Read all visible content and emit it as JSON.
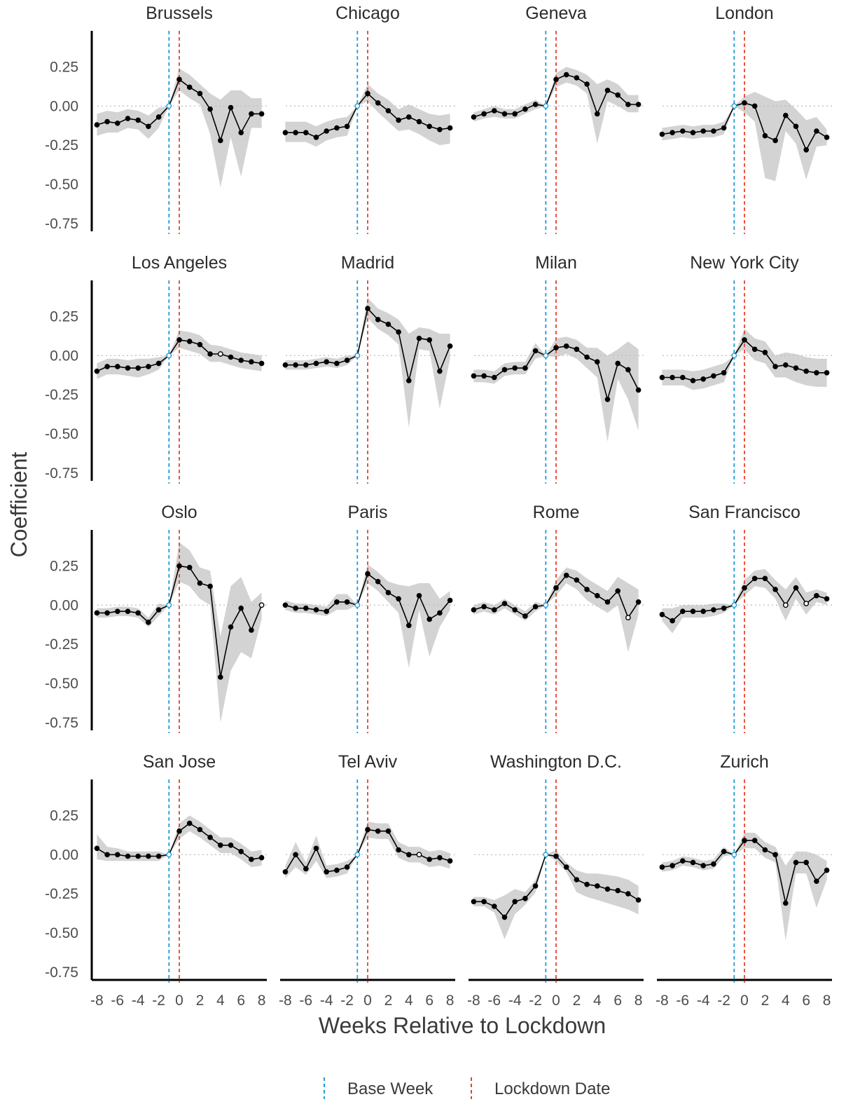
{
  "chart_data": {
    "type": "line",
    "layout": "facet-grid 4x4",
    "xlabel": "Weeks Relative to Lockdown",
    "ylabel": "Coefficient",
    "x": [
      -8,
      -7,
      -6,
      -5,
      -4,
      -3,
      -2,
      -1,
      0,
      1,
      2,
      3,
      4,
      5,
      6,
      7,
      8
    ],
    "xticks": [
      -8,
      -6,
      -4,
      -2,
      0,
      2,
      4,
      6,
      8
    ],
    "xtick_labels": [
      "-8",
      "-6",
      "-4",
      "-2",
      "0",
      "2",
      "4",
      "6",
      "8"
    ],
    "yticks": [
      -0.75,
      -0.5,
      -0.25,
      0,
      0.25
    ],
    "ytick_labels": [
      "-0.75",
      "-0.50",
      "-0.25",
      "0.00",
      "0.25"
    ],
    "ylim": [
      -0.8,
      0.48
    ],
    "reference_lines": [
      {
        "name": "Base Week",
        "x": -1,
        "color": "#1e9bd7",
        "style": "dashed"
      },
      {
        "name": "Lockdown Date",
        "x": 0,
        "color": "#e8412c",
        "style": "dashed"
      }
    ],
    "zero_line": {
      "y": 0,
      "style": "dotted",
      "color": "#bdbdbd"
    },
    "ribbon_color": "#d3d3d3",
    "line_color": "#000000",
    "legend": {
      "position": "bottom",
      "entries": [
        "Base Week",
        "Lockdown Date"
      ]
    },
    "panels": [
      {
        "name": "Brussels",
        "y": [
          -0.12,
          -0.1,
          -0.11,
          -0.08,
          -0.09,
          -0.13,
          -0.07,
          0,
          0.17,
          0.12,
          0.08,
          -0.02,
          -0.22,
          -0.01,
          -0.17,
          -0.05,
          -0.05
        ],
        "lower": [
          -0.19,
          -0.17,
          -0.17,
          -0.14,
          -0.15,
          -0.21,
          -0.14,
          0,
          0.1,
          0.05,
          0.01,
          -0.18,
          -0.52,
          -0.2,
          -0.45,
          -0.14,
          -0.14
        ],
        "upper": [
          -0.05,
          -0.03,
          -0.04,
          -0.02,
          -0.03,
          -0.06,
          -0.01,
          0,
          0.24,
          0.2,
          0.14,
          0.08,
          0.04,
          0.1,
          0.1,
          0.05,
          0.05
        ]
      },
      {
        "name": "Chicago",
        "y": [
          -0.17,
          -0.17,
          -0.17,
          -0.2,
          -0.16,
          -0.14,
          -0.13,
          0,
          0.08,
          0.02,
          -0.03,
          -0.09,
          -0.07,
          -0.1,
          -0.13,
          -0.15,
          -0.14
        ],
        "lower": [
          -0.23,
          -0.23,
          -0.23,
          -0.26,
          -0.22,
          -0.2,
          -0.19,
          0,
          0.03,
          -0.04,
          -0.1,
          -0.16,
          -0.15,
          -0.18,
          -0.22,
          -0.25,
          -0.24
        ],
        "upper": [
          -0.1,
          -0.1,
          -0.1,
          -0.13,
          -0.1,
          -0.08,
          -0.07,
          0,
          0.14,
          0.08,
          0.04,
          -0.02,
          0.01,
          -0.02,
          -0.05,
          -0.06,
          -0.05
        ]
      },
      {
        "name": "Geneva",
        "y": [
          -0.07,
          -0.05,
          -0.03,
          -0.05,
          -0.05,
          -0.02,
          0.01,
          0,
          0.17,
          0.2,
          0.18,
          0.14,
          -0.05,
          0.1,
          0.07,
          0.01,
          0.01
        ],
        "lower": [
          -0.1,
          -0.08,
          -0.07,
          -0.08,
          -0.08,
          -0.05,
          -0.02,
          0,
          0.12,
          0.15,
          0.13,
          0.08,
          -0.24,
          0.03,
          0,
          -0.04,
          -0.04
        ],
        "upper": [
          -0.04,
          -0.02,
          0,
          -0.02,
          -0.02,
          0.01,
          0.04,
          0,
          0.21,
          0.25,
          0.23,
          0.2,
          0.14,
          0.17,
          0.14,
          0.07,
          0.07
        ]
      },
      {
        "name": "London",
        "y": [
          -0.18,
          -0.17,
          -0.16,
          -0.17,
          -0.16,
          -0.16,
          -0.14,
          0,
          0.02,
          0,
          -0.19,
          -0.22,
          -0.06,
          -0.13,
          -0.28,
          -0.16,
          -0.2
        ],
        "lower": [
          -0.22,
          -0.21,
          -0.2,
          -0.21,
          -0.2,
          -0.2,
          -0.18,
          0,
          -0.04,
          -0.1,
          -0.46,
          -0.48,
          -0.16,
          -0.24,
          -0.47,
          -0.26,
          -0.25
        ],
        "upper": [
          -0.14,
          -0.13,
          -0.12,
          -0.13,
          -0.12,
          -0.12,
          -0.1,
          0,
          0.06,
          0.09,
          0.06,
          0.03,
          0.04,
          -0.02,
          -0.09,
          -0.07,
          -0.15
        ]
      },
      {
        "name": "Los Angeles",
        "y": [
          -0.1,
          -0.07,
          -0.07,
          -0.08,
          -0.08,
          -0.07,
          -0.05,
          0,
          0.1,
          0.09,
          0.07,
          0.01,
          0.01,
          -0.01,
          -0.03,
          -0.04,
          -0.05
        ],
        "lower": [
          -0.15,
          -0.12,
          -0.12,
          -0.13,
          -0.14,
          -0.12,
          -0.09,
          0,
          0.05,
          0.03,
          0.01,
          -0.04,
          -0.04,
          -0.06,
          -0.08,
          -0.09,
          -0.1
        ],
        "upper": [
          -0.05,
          -0.02,
          -0.02,
          -0.03,
          -0.02,
          -0.02,
          -0.01,
          0,
          0.16,
          0.15,
          0.13,
          0.07,
          0.06,
          0.04,
          0.02,
          0.01,
          0
        ],
        "hollow": [
          12
        ]
      },
      {
        "name": "Madrid",
        "y": [
          -0.06,
          -0.06,
          -0.06,
          -0.05,
          -0.04,
          -0.05,
          -0.03,
          0,
          0.3,
          0.23,
          0.2,
          0.15,
          -0.16,
          0.11,
          0.1,
          -0.1,
          0.06
        ],
        "lower": [
          -0.09,
          -0.09,
          -0.09,
          -0.08,
          -0.07,
          -0.08,
          -0.06,
          0,
          0.24,
          0.17,
          0.13,
          0.07,
          -0.46,
          0.04,
          0.03,
          -0.34,
          -0.02
        ],
        "upper": [
          -0.03,
          -0.03,
          -0.03,
          -0.02,
          -0.01,
          -0.02,
          0,
          0,
          0.37,
          0.3,
          0.27,
          0.23,
          0.14,
          0.18,
          0.17,
          0.14,
          0.14
        ]
      },
      {
        "name": "Milan",
        "y": [
          -0.13,
          -0.13,
          -0.14,
          -0.09,
          -0.08,
          -0.08,
          0.03,
          0,
          0.05,
          0.06,
          0.04,
          -0.01,
          -0.04,
          -0.28,
          -0.05,
          -0.09,
          -0.22
        ],
        "lower": [
          -0.17,
          -0.17,
          -0.18,
          -0.13,
          -0.12,
          -0.12,
          -0.02,
          0,
          -0.01,
          0.01,
          -0.02,
          -0.08,
          -0.14,
          -0.55,
          -0.15,
          -0.28,
          -0.48
        ],
        "upper": [
          -0.09,
          -0.09,
          -0.1,
          -0.05,
          -0.04,
          -0.04,
          0.08,
          0,
          0.11,
          0.12,
          0.1,
          0.05,
          0.05,
          0,
          0.04,
          0.09,
          0.04
        ]
      },
      {
        "name": "New York City",
        "y": [
          -0.14,
          -0.14,
          -0.14,
          -0.16,
          -0.15,
          -0.13,
          -0.11,
          0,
          0.1,
          0.04,
          0.02,
          -0.07,
          -0.06,
          -0.08,
          -0.1,
          -0.11,
          -0.11
        ],
        "lower": [
          -0.19,
          -0.19,
          -0.19,
          -0.22,
          -0.21,
          -0.19,
          -0.17,
          0,
          0.04,
          -0.03,
          -0.05,
          -0.14,
          -0.14,
          -0.17,
          -0.19,
          -0.2,
          -0.2
        ],
        "upper": [
          -0.09,
          -0.09,
          -0.09,
          -0.1,
          -0.09,
          -0.07,
          -0.05,
          0,
          0.17,
          0.11,
          0.09,
          0,
          0.02,
          0.01,
          -0.01,
          -0.02,
          -0.02
        ]
      },
      {
        "name": "Oslo",
        "y": [
          -0.05,
          -0.05,
          -0.04,
          -0.04,
          -0.05,
          -0.11,
          -0.03,
          0,
          0.25,
          0.24,
          0.14,
          0.12,
          -0.46,
          -0.14,
          -0.02,
          -0.16,
          0
        ],
        "lower": [
          -0.08,
          -0.08,
          -0.07,
          -0.07,
          -0.08,
          -0.14,
          -0.07,
          0,
          0.15,
          0.12,
          0.04,
          0,
          -0.75,
          -0.42,
          -0.3,
          -0.34,
          -0.09
        ],
        "upper": [
          -0.02,
          -0.02,
          -0.01,
          -0.01,
          -0.02,
          -0.08,
          0.01,
          0,
          0.4,
          0.35,
          0.24,
          0.22,
          -0.2,
          0.12,
          0.18,
          0.02,
          0.08
        ],
        "hollow": [
          16
        ]
      },
      {
        "name": "Paris",
        "y": [
          0,
          -0.02,
          -0.02,
          -0.03,
          -0.04,
          0.02,
          0.02,
          0,
          0.2,
          0.15,
          0.08,
          0.04,
          -0.13,
          0.06,
          -0.09,
          -0.05,
          0.03
        ],
        "lower": [
          -0.03,
          -0.05,
          -0.05,
          -0.06,
          -0.07,
          -0.03,
          -0.03,
          0,
          0.14,
          0.09,
          0.02,
          -0.05,
          -0.4,
          -0.03,
          -0.33,
          -0.14,
          -0.03
        ],
        "upper": [
          0.03,
          0.01,
          0.01,
          0,
          -0.01,
          0.07,
          0.07,
          0,
          0.26,
          0.21,
          0.15,
          0.13,
          0.12,
          0.14,
          0.14,
          0.04,
          0.09
        ]
      },
      {
        "name": "Rome",
        "y": [
          -0.03,
          -0.01,
          -0.03,
          0.01,
          -0.03,
          -0.07,
          -0.01,
          0,
          0.11,
          0.19,
          0.16,
          0.1,
          0.06,
          0.02,
          0.09,
          -0.08,
          0.02
        ],
        "lower": [
          -0.06,
          -0.04,
          -0.06,
          -0.02,
          -0.06,
          -0.1,
          -0.04,
          0,
          0.06,
          0.14,
          0.1,
          0.03,
          -0.01,
          -0.05,
          0,
          -0.3,
          -0.06
        ],
        "upper": [
          0,
          0.02,
          0,
          0.04,
          0,
          -0.04,
          0.02,
          0,
          0.16,
          0.24,
          0.22,
          0.17,
          0.13,
          0.09,
          0.18,
          0.14,
          0.1
        ],
        "hollow": [
          15
        ]
      },
      {
        "name": "San Francisco",
        "y": [
          -0.06,
          -0.1,
          -0.04,
          -0.04,
          -0.04,
          -0.03,
          -0.02,
          0,
          0.11,
          0.17,
          0.17,
          0.1,
          0,
          0.11,
          0.01,
          0.06,
          0.04
        ],
        "lower": [
          -0.1,
          -0.18,
          -0.08,
          -0.08,
          -0.08,
          -0.07,
          -0.05,
          0,
          0.06,
          0.12,
          0.11,
          0.04,
          -0.1,
          0.04,
          -0.06,
          0.02,
          0
        ],
        "upper": [
          -0.02,
          -0.02,
          0,
          0,
          0,
          0.01,
          0.01,
          0,
          0.16,
          0.22,
          0.23,
          0.16,
          0.1,
          0.18,
          0.08,
          0.1,
          0.08
        ],
        "hollow": [
          12,
          14
        ]
      },
      {
        "name": "San Jose",
        "y": [
          0.04,
          0,
          0,
          -0.01,
          -0.01,
          -0.01,
          -0.01,
          0,
          0.15,
          0.2,
          0.16,
          0.11,
          0.06,
          0.06,
          0.02,
          -0.03,
          -0.02
        ],
        "lower": [
          -0.03,
          -0.04,
          -0.04,
          -0.04,
          -0.04,
          -0.04,
          -0.04,
          0,
          0.1,
          0.15,
          0.11,
          0.06,
          0.01,
          0.01,
          -0.03,
          -0.08,
          -0.07
        ],
        "upper": [
          0.13,
          0.05,
          0.04,
          0.02,
          0.02,
          0.02,
          0.02,
          0,
          0.2,
          0.25,
          0.21,
          0.16,
          0.11,
          0.11,
          0.07,
          0.02,
          0.03
        ]
      },
      {
        "name": "Tel Aviv",
        "y": [
          -0.11,
          0,
          -0.09,
          0.04,
          -0.11,
          -0.1,
          -0.08,
          0,
          0.16,
          0.15,
          0.15,
          0.03,
          0,
          0,
          -0.03,
          -0.02,
          -0.04
        ],
        "lower": [
          -0.15,
          -0.08,
          -0.13,
          -0.04,
          -0.15,
          -0.14,
          -0.12,
          0,
          0.11,
          0.1,
          0.1,
          -0.02,
          -0.05,
          -0.05,
          -0.08,
          -0.07,
          -0.09
        ],
        "upper": [
          -0.07,
          0.08,
          -0.05,
          0.12,
          -0.07,
          -0.06,
          -0.04,
          0,
          0.21,
          0.2,
          0.2,
          0.08,
          0.05,
          0.05,
          0.02,
          0.03,
          0.01
        ],
        "hollow": [
          13
        ]
      },
      {
        "name": "Washington D.C.",
        "y": [
          -0.3,
          -0.3,
          -0.33,
          -0.4,
          -0.3,
          -0.28,
          -0.2,
          0,
          -0.01,
          -0.08,
          -0.16,
          -0.19,
          -0.2,
          -0.22,
          -0.23,
          -0.25,
          -0.29
        ],
        "lower": [
          -0.33,
          -0.33,
          -0.37,
          -0.54,
          -0.38,
          -0.32,
          -0.24,
          0,
          -0.04,
          -0.11,
          -0.24,
          -0.27,
          -0.29,
          -0.31,
          -0.33,
          -0.35,
          -0.38
        ],
        "upper": [
          -0.27,
          -0.27,
          -0.29,
          -0.26,
          -0.22,
          -0.24,
          -0.16,
          0,
          0.03,
          -0.05,
          -0.1,
          -0.12,
          -0.12,
          -0.13,
          -0.14,
          -0.16,
          -0.2
        ]
      },
      {
        "name": "Zurich",
        "y": [
          -0.08,
          -0.07,
          -0.04,
          -0.05,
          -0.07,
          -0.06,
          0.02,
          0,
          0.09,
          0.09,
          0.03,
          0,
          -0.31,
          -0.05,
          -0.05,
          -0.17,
          -0.1
        ],
        "lower": [
          -0.11,
          -0.1,
          -0.07,
          -0.08,
          -0.1,
          -0.09,
          -0.01,
          0,
          0.04,
          0.04,
          -0.02,
          -0.05,
          -0.55,
          -0.12,
          -0.12,
          -0.34,
          -0.16
        ],
        "upper": [
          -0.05,
          -0.04,
          -0.01,
          -0.02,
          -0.04,
          -0.03,
          0.05,
          0,
          0.14,
          0.14,
          0.08,
          0.05,
          -0.07,
          0.02,
          0.02,
          0,
          -0.04
        ]
      }
    ]
  }
}
